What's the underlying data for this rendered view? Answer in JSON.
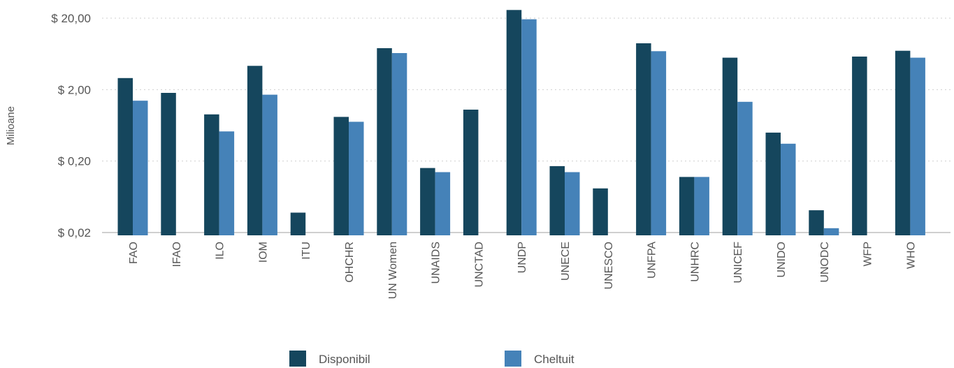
{
  "chart_data": {
    "type": "bar",
    "title": "",
    "xlabel": "",
    "ylabel": "Milioane",
    "y_scale": "log",
    "ylim": [
      0.02,
      29
    ],
    "y_ticks": [
      0.02,
      0.2,
      2,
      20
    ],
    "y_tick_labels": [
      "$ 0,02",
      "$ 0,20",
      "$ 2,00",
      "$ 20,00"
    ],
    "grid": true,
    "legend_position": "bottom",
    "categories": [
      "FAO",
      "IFAO",
      "ILO",
      "IOM",
      "ITU",
      "OHCHR",
      "UN Women",
      "UNAIDS",
      "UNCTAD",
      "UNDP",
      "UNECE",
      "UNESCO",
      "UNFPA",
      "UNHRC",
      "UNICEF",
      "UNIDO",
      "UNODC",
      "WFP",
      "WHO"
    ],
    "series": [
      {
        "name": "Disponibil",
        "color": "#15465d",
        "values": [
          2.9,
          1.8,
          0.9,
          4.3,
          0.038,
          0.83,
          7.6,
          0.16,
          1.05,
          26.0,
          0.17,
          0.083,
          8.9,
          0.12,
          5.6,
          0.5,
          0.041,
          5.8,
          7.0
        ]
      },
      {
        "name": "Cheltuit",
        "color": "#4582b8",
        "values": [
          1.4,
          null,
          0.52,
          1.7,
          null,
          0.71,
          6.5,
          0.14,
          null,
          19.3,
          0.14,
          null,
          6.9,
          0.12,
          1.35,
          0.35,
          0.023,
          null,
          5.6
        ]
      }
    ]
  }
}
